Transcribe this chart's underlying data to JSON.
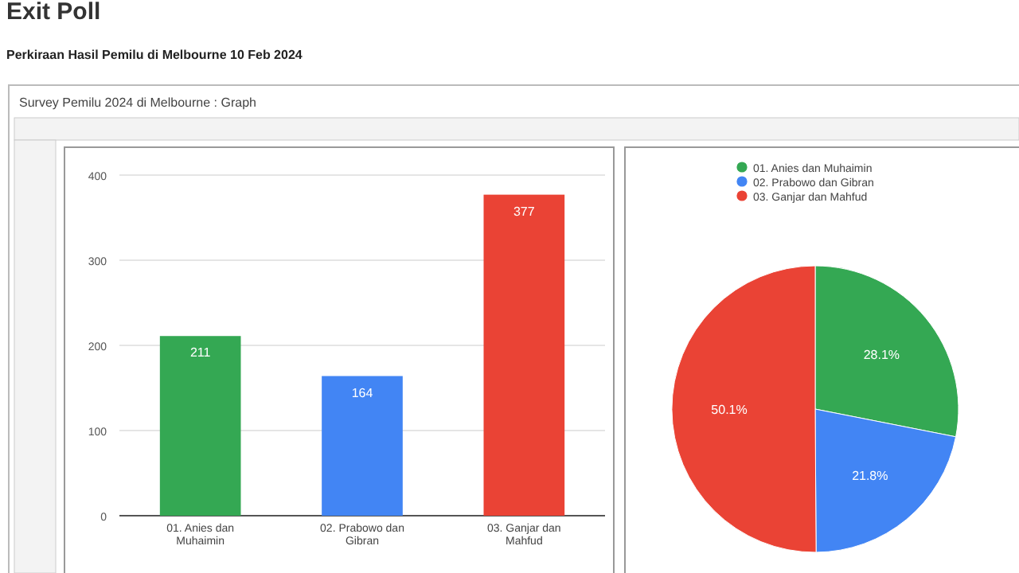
{
  "chart_data": [
    {
      "type": "bar",
      "title": "Exit Poll",
      "subtitle": "Perkiraan Hasil Pemilu di Melbourne 10 Feb 2024",
      "annotations": [
        "Survey Pemilu 2024 di Melbourne : Graph"
      ],
      "categories": [
        "01. Anies dan Muhaimin",
        "02. Prabowo dan Gibran",
        "03. Ganjar dan Mahfud"
      ],
      "values": [
        211,
        164,
        377
      ],
      "colors": [
        "#34a853",
        "#4285f4",
        "#ea4335"
      ],
      "ylim": [
        0,
        400
      ],
      "yticks": [
        0,
        100,
        200,
        300,
        400
      ],
      "grid": "y",
      "data_labels": true
    },
    {
      "type": "pie",
      "categories": [
        "01. Anies dan Muhaimin",
        "02. Prabowo dan Gibran",
        "03. Ganjar dan Mahfud"
      ],
      "values": [
        28.1,
        21.8,
        50.1
      ],
      "colors": [
        "#34a853",
        "#4285f4",
        "#ea4335"
      ],
      "value_labels": [
        "28.1%",
        "21.8%",
        "50.1%"
      ],
      "legend": "top"
    }
  ]
}
